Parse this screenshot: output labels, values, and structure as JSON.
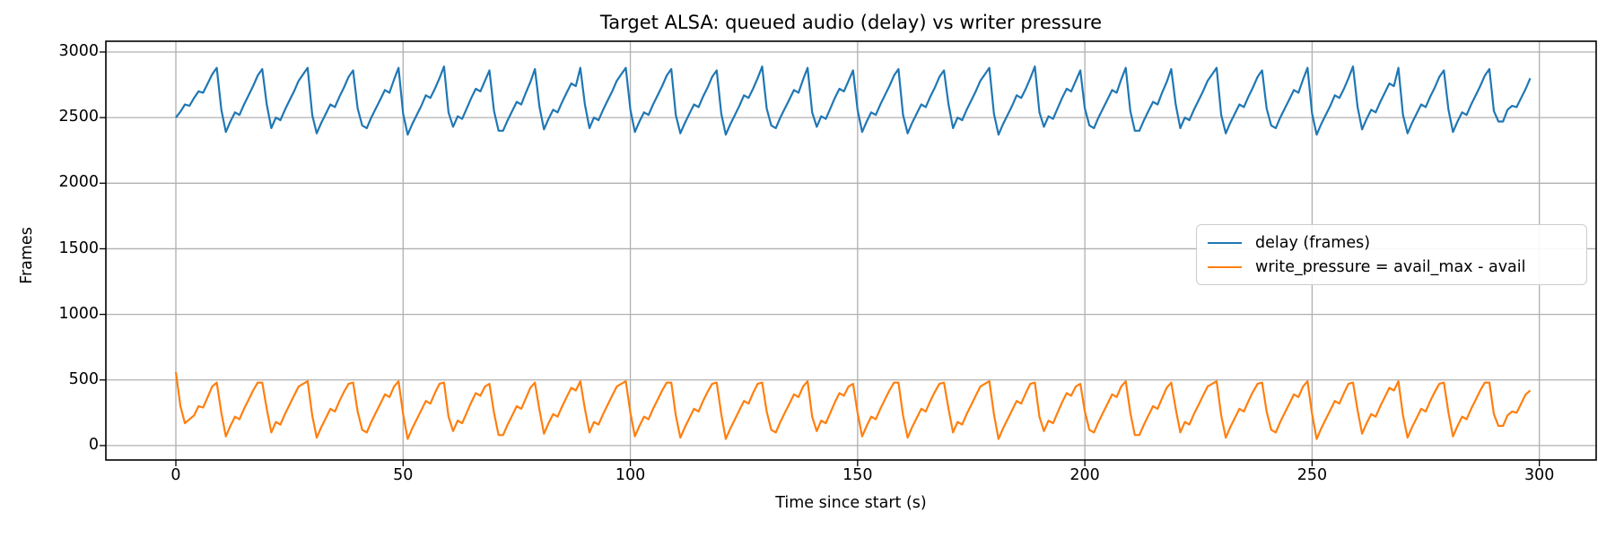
{
  "chart_data": {
    "type": "line",
    "title": "Target ALSA: queued audio (delay) vs writer pressure",
    "xlabel": "Time since start (s)",
    "ylabel": "Frames",
    "grid": true,
    "background": "#ffffff",
    "grid_color": "#b0b0b0",
    "spine_color": "#000000",
    "x_start": 0,
    "x_step": 1,
    "xlim": [
      -15.4,
      312.5
    ],
    "ylim": [
      -110,
      3082
    ],
    "x_ticks": [
      0,
      50,
      100,
      150,
      200,
      250,
      300
    ],
    "y_ticks": [
      0,
      500,
      1000,
      1500,
      2000,
      2500,
      3000
    ],
    "x_tick_labels": [
      "0",
      "50",
      "100",
      "150",
      "200",
      "250",
      "300"
    ],
    "y_tick_labels": [
      "0",
      "500",
      "1000",
      "1500",
      "2000",
      "2500",
      "3000"
    ],
    "legend": {
      "position": "center right",
      "entries": [
        "delay (frames)",
        "write_pressure = avail_max - avail"
      ]
    },
    "series": [
      {
        "name": "delay (frames)",
        "color": "#1f77b4",
        "values": [
          2500,
          2545,
          2600,
          2590,
          2650,
          2700,
          2690,
          2760,
          2830,
          2880,
          2560,
          2390,
          2470,
          2540,
          2520,
          2600,
          2670,
          2740,
          2820,
          2870,
          2600,
          2420,
          2500,
          2480,
          2560,
          2630,
          2700,
          2780,
          2830,
          2880,
          2520,
          2380,
          2460,
          2530,
          2600,
          2580,
          2660,
          2730,
          2810,
          2860,
          2570,
          2440,
          2420,
          2500,
          2570,
          2640,
          2710,
          2690,
          2790,
          2880,
          2530,
          2370,
          2450,
          2520,
          2590,
          2670,
          2650,
          2720,
          2800,
          2890,
          2540,
          2430,
          2510,
          2490,
          2570,
          2650,
          2720,
          2700,
          2780,
          2860,
          2550,
          2400,
          2400,
          2480,
          2550,
          2620,
          2600,
          2690,
          2770,
          2870,
          2580,
          2410,
          2490,
          2560,
          2540,
          2620,
          2690,
          2760,
          2740,
          2880,
          2600,
          2420,
          2500,
          2480,
          2560,
          2630,
          2700,
          2780,
          2830,
          2880,
          2560,
          2390,
          2470,
          2540,
          2520,
          2600,
          2670,
          2740,
          2820,
          2870,
          2520,
          2380,
          2460,
          2530,
          2600,
          2580,
          2660,
          2730,
          2810,
          2860,
          2530,
          2370,
          2450,
          2520,
          2590,
          2670,
          2650,
          2720,
          2800,
          2890,
          2570,
          2440,
          2420,
          2500,
          2570,
          2640,
          2710,
          2690,
          2790,
          2880,
          2540,
          2430,
          2510,
          2490,
          2570,
          2650,
          2720,
          2700,
          2780,
          2860,
          2560,
          2390,
          2470,
          2540,
          2520,
          2600,
          2670,
          2740,
          2820,
          2870,
          2520,
          2380,
          2460,
          2530,
          2600,
          2580,
          2660,
          2730,
          2810,
          2860,
          2600,
          2420,
          2500,
          2480,
          2560,
          2630,
          2700,
          2780,
          2830,
          2880,
          2530,
          2370,
          2450,
          2520,
          2590,
          2670,
          2650,
          2720,
          2800,
          2890,
          2540,
          2430,
          2510,
          2490,
          2570,
          2650,
          2720,
          2700,
          2780,
          2860,
          2570,
          2440,
          2420,
          2500,
          2570,
          2640,
          2710,
          2690,
          2790,
          2880,
          2550,
          2400,
          2400,
          2480,
          2550,
          2620,
          2600,
          2690,
          2770,
          2870,
          2600,
          2420,
          2500,
          2480,
          2560,
          2630,
          2700,
          2780,
          2830,
          2880,
          2520,
          2380,
          2460,
          2530,
          2600,
          2580,
          2660,
          2730,
          2810,
          2860,
          2570,
          2440,
          2420,
          2500,
          2570,
          2640,
          2710,
          2690,
          2790,
          2880,
          2530,
          2370,
          2450,
          2520,
          2590,
          2670,
          2650,
          2720,
          2800,
          2890,
          2580,
          2410,
          2490,
          2560,
          2540,
          2620,
          2690,
          2760,
          2740,
          2880,
          2520,
          2380,
          2460,
          2530,
          2600,
          2580,
          2660,
          2730,
          2810,
          2860,
          2560,
          2390,
          2470,
          2540,
          2520,
          2600,
          2670,
          2740,
          2820,
          2870,
          2550,
          2470,
          2470,
          2560,
          2590,
          2580,
          2650,
          2720,
          2800
        ]
      },
      {
        "name": "write_pressure = avail_max - avail",
        "color": "#ff7f0e",
        "values": [
          560,
          300,
          170,
          200,
          230,
          300,
          290,
          370,
          450,
          480,
          250,
          70,
          150,
          220,
          200,
          280,
          350,
          420,
          480,
          480,
          280,
          100,
          180,
          160,
          240,
          310,
          380,
          450,
          470,
          490,
          230,
          60,
          140,
          210,
          280,
          260,
          340,
          410,
          470,
          480,
          260,
          120,
          100,
          180,
          250,
          320,
          390,
          370,
          450,
          490,
          240,
          50,
          130,
          200,
          270,
          340,
          320,
          400,
          470,
          480,
          220,
          110,
          190,
          170,
          250,
          330,
          400,
          380,
          450,
          470,
          250,
          80,
          80,
          160,
          230,
          300,
          280,
          360,
          440,
          480,
          270,
          90,
          170,
          240,
          220,
          300,
          370,
          440,
          420,
          490,
          280,
          100,
          180,
          160,
          240,
          310,
          380,
          450,
          470,
          490,
          250,
          70,
          150,
          220,
          200,
          280,
          350,
          420,
          480,
          480,
          230,
          60,
          140,
          210,
          280,
          260,
          340,
          410,
          470,
          480,
          240,
          50,
          130,
          200,
          270,
          340,
          320,
          400,
          470,
          480,
          260,
          120,
          100,
          180,
          250,
          320,
          390,
          370,
          450,
          490,
          220,
          110,
          190,
          170,
          250,
          330,
          400,
          380,
          450,
          470,
          250,
          70,
          150,
          220,
          200,
          280,
          350,
          420,
          480,
          480,
          230,
          60,
          140,
          210,
          280,
          260,
          340,
          410,
          470,
          480,
          280,
          100,
          180,
          160,
          240,
          310,
          380,
          450,
          470,
          490,
          240,
          50,
          130,
          200,
          270,
          340,
          320,
          400,
          470,
          480,
          220,
          110,
          190,
          170,
          250,
          330,
          400,
          380,
          450,
          470,
          260,
          120,
          100,
          180,
          250,
          320,
          390,
          370,
          450,
          490,
          250,
          80,
          80,
          160,
          230,
          300,
          280,
          360,
          440,
          480,
          280,
          100,
          180,
          160,
          240,
          310,
          380,
          450,
          470,
          490,
          230,
          60,
          140,
          210,
          280,
          260,
          340,
          410,
          470,
          480,
          260,
          120,
          100,
          180,
          250,
          320,
          390,
          370,
          450,
          490,
          240,
          50,
          130,
          200,
          270,
          340,
          320,
          400,
          470,
          480,
          270,
          90,
          170,
          240,
          220,
          300,
          370,
          440,
          420,
          490,
          230,
          60,
          140,
          210,
          280,
          260,
          340,
          410,
          470,
          480,
          250,
          70,
          150,
          220,
          200,
          280,
          350,
          420,
          480,
          480,
          240,
          150,
          150,
          230,
          260,
          250,
          320,
          390,
          420
        ]
      }
    ]
  }
}
